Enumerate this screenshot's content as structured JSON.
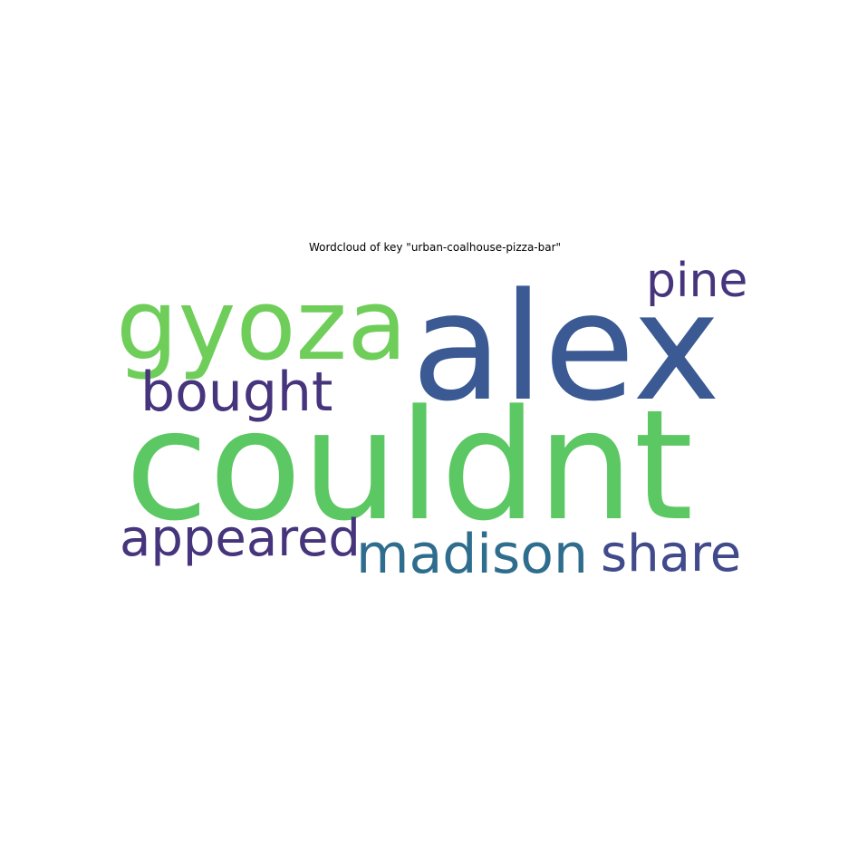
{
  "chart_data": {
    "type": "wordcloud",
    "title": "Wordcloud of key \"urban-coalhouse-pizza-bar\"",
    "words": [
      {
        "text": "couldnt",
        "weight": 1.0,
        "color": "#5cc863"
      },
      {
        "text": "alex",
        "weight": 0.95,
        "color": "#3b5a93"
      },
      {
        "text": "gyoza",
        "weight": 0.6,
        "color": "#6fce5a"
      },
      {
        "text": "madison",
        "weight": 0.4,
        "color": "#2f6d8e"
      },
      {
        "text": "share",
        "weight": 0.38,
        "color": "#414a8a"
      },
      {
        "text": "appeared",
        "weight": 0.38,
        "color": "#46347c"
      },
      {
        "text": "bought",
        "weight": 0.38,
        "color": "#46347c"
      },
      {
        "text": "pine",
        "weight": 0.35,
        "color": "#46347c"
      }
    ]
  }
}
